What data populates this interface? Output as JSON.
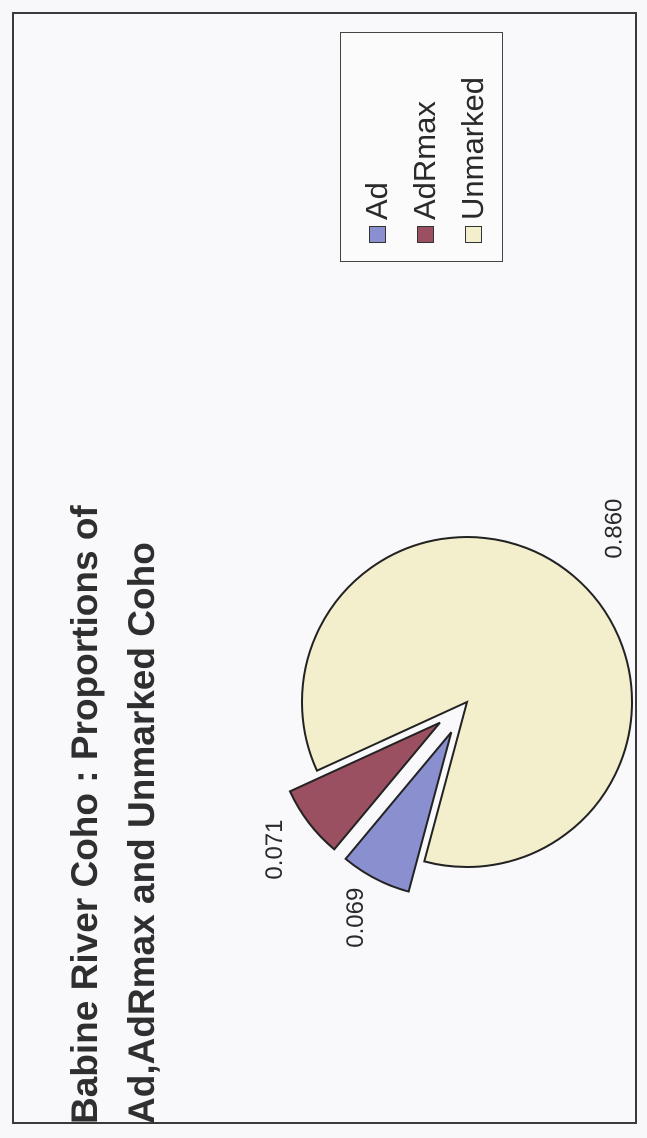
{
  "chart_data": {
    "type": "pie",
    "title_lines": [
      "Babine River Coho : Proportions of",
      "Ad,AdRmax and Unmarked Coho"
    ],
    "categories": [
      "Ad",
      "AdRmax",
      "Unmarked"
    ],
    "values": [
      0.069,
      0.071,
      0.86
    ],
    "value_labels": [
      "0.069",
      "0.071",
      "0.860"
    ],
    "colors": [
      "#8a8fd0",
      "#9a5060",
      "#f3efcc"
    ],
    "exploded": [
      "Ad",
      "AdRmax"
    ],
    "legend_position": "right"
  }
}
